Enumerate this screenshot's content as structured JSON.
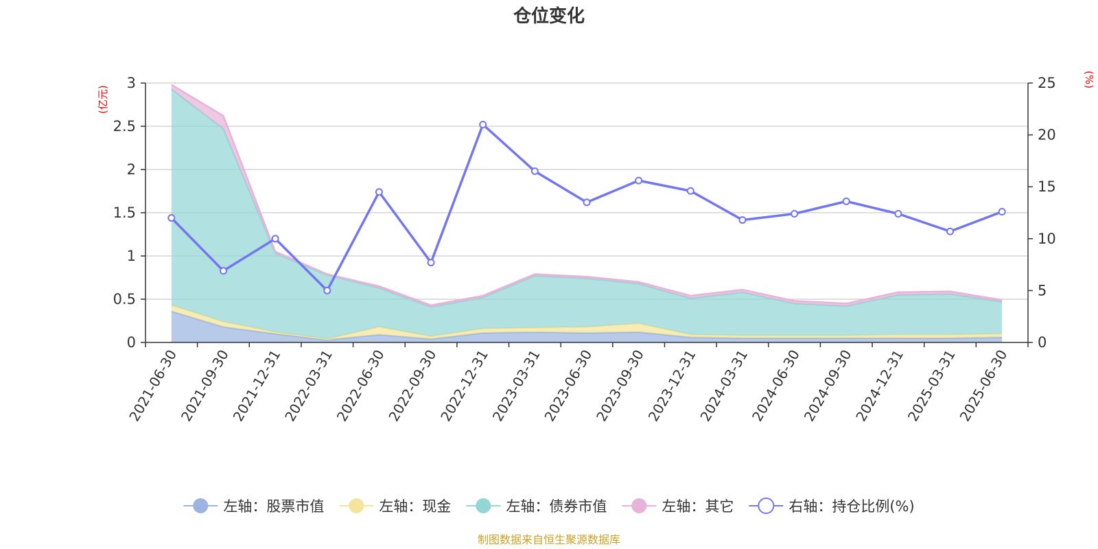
{
  "chart_data": {
    "type": "area",
    "title": "仓位变化",
    "y_left_unit": "(亿元)",
    "y_right_unit": "(%)",
    "y_left_ticks": [
      "0",
      "0.5",
      "1",
      "1.5",
      "2",
      "2.5",
      "3"
    ],
    "y_right_ticks": [
      "0",
      "5",
      "10",
      "15",
      "20",
      "25"
    ],
    "ylim_left": [
      0,
      3
    ],
    "ylim_right": [
      0,
      25
    ],
    "categories": [
      "2021-06-30",
      "2021-09-30",
      "2021-12-31",
      "2022-03-31",
      "2022-06-30",
      "2022-09-30",
      "2022-12-31",
      "2023-03-31",
      "2023-06-30",
      "2023-09-30",
      "2023-12-31",
      "2024-03-31",
      "2024-06-30",
      "2024-09-30",
      "2024-12-31",
      "2025-03-31",
      "2025-06-30"
    ],
    "stacked_series": [
      {
        "name": "左轴：股票市值",
        "color": "#9bb5e0",
        "values": [
          0.36,
          0.18,
          0.1,
          0.03,
          0.09,
          0.04,
          0.11,
          0.12,
          0.11,
          0.12,
          0.06,
          0.05,
          0.05,
          0.05,
          0.05,
          0.05,
          0.06
        ]
      },
      {
        "name": "左轴：现金",
        "color": "#f5e49a",
        "values": [
          0.07,
          0.06,
          0.02,
          0.01,
          0.09,
          0.03,
          0.05,
          0.05,
          0.07,
          0.1,
          0.03,
          0.03,
          0.03,
          0.03,
          0.04,
          0.04,
          0.04
        ]
      },
      {
        "name": "左轴：债券市值",
        "color": "#94d6d6",
        "values": [
          2.5,
          2.23,
          0.91,
          0.74,
          0.45,
          0.34,
          0.36,
          0.6,
          0.56,
          0.46,
          0.42,
          0.5,
          0.37,
          0.34,
          0.46,
          0.47,
          0.37
        ]
      },
      {
        "name": "左轴：其它",
        "color": "#e8b3d9",
        "values": [
          0.05,
          0.15,
          0.02,
          0.01,
          0.02,
          0.02,
          0.02,
          0.02,
          0.02,
          0.02,
          0.03,
          0.03,
          0.03,
          0.03,
          0.03,
          0.03,
          0.02
        ]
      }
    ],
    "line_series": {
      "name": "右轴：持仓比例(%)",
      "color": "#7276f0",
      "values": [
        12.0,
        6.9,
        10.0,
        5.0,
        14.5,
        7.7,
        21.0,
        16.5,
        13.5,
        15.6,
        14.6,
        11.8,
        12.4,
        13.6,
        12.4,
        10.7,
        12.6
      ]
    },
    "grid": true,
    "legend_position": "bottom"
  },
  "source_text": "制图数据来自恒生聚源数据库"
}
